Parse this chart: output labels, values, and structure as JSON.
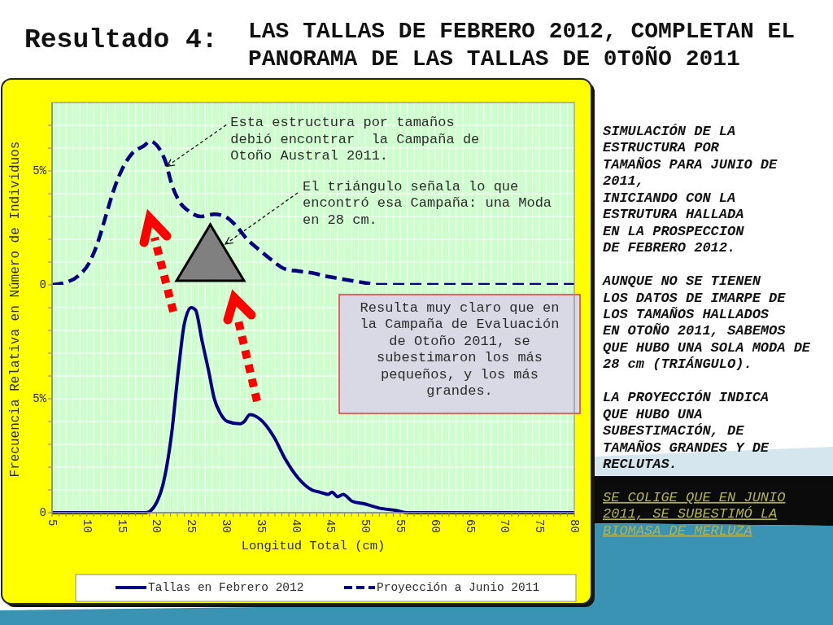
{
  "chart_data": [
    {
      "type": "line",
      "title": "Resultado 4:",
      "subtitle": "LAS TALLAS DE FEBRERO 2012, COMPLETAN EL PANORAMA DE LAS TALLAS DE 0T0ÑO 2011",
      "series": [
        {
          "name": "Proyección a Junio 2011",
          "color": "#000080",
          "x": [
            5,
            6.9,
            8.8,
            10.4,
            11.5,
            12.7,
            13.9,
            15.1,
            16.6,
            18.2,
            19.1,
            20.1,
            21.3,
            22.2,
            23.2,
            24.8,
            26.3,
            28.3,
            29.8,
            31.4,
            33,
            34.5,
            36.5,
            38.4,
            40.4,
            42.7,
            44,
            45.8,
            49.7,
            52,
            80
          ],
          "values": [
            0,
            0.1,
            0.4,
            1,
            1.8,
            3,
            4.2,
            5.1,
            5.8,
            6.1,
            6.3,
            6.1,
            5.4,
            4.4,
            3.7,
            3.2,
            3,
            3.1,
            3,
            2.6,
            2,
            1.6,
            1.1,
            0.7,
            0.6,
            0.5,
            0.4,
            0.3,
            0.1,
            0,
            0
          ]
        }
      ],
      "xlim": [
        5,
        80
      ],
      "xticks": [
        5,
        {
          "value": 6,
          "label": null
        },
        {
          "value": 7,
          "label": null
        },
        {
          "value": 8,
          "label": null
        },
        {
          "value": 9,
          "label": null
        },
        10,
        {
          "value": 11,
          "label": null
        },
        {
          "value": 12,
          "label": null
        },
        {
          "value": 13,
          "label": null
        },
        {
          "value": 14,
          "label": null
        },
        15,
        {
          "value": 16,
          "label": null
        },
        {
          "value": 17,
          "label": null
        },
        {
          "value": 18,
          "label": null
        },
        {
          "value": 19,
          "label": null
        },
        20,
        {
          "value": 21,
          "label": null
        },
        {
          "value": 22,
          "label": null
        },
        {
          "value": 23,
          "label": null
        },
        {
          "value": 24,
          "label": null
        },
        25,
        {
          "value": 26,
          "label": null
        },
        {
          "value": 27,
          "label": null
        },
        {
          "value": 28,
          "label": null
        },
        {
          "value": 29,
          "label": null
        },
        30,
        {
          "value": 31,
          "label": null
        },
        {
          "value": 32,
          "label": null
        },
        {
          "value": 33,
          "label": null
        },
        {
          "value": 34,
          "label": null
        },
        35,
        {
          "value": 36,
          "label": null
        },
        {
          "value": 37,
          "label": null
        },
        {
          "value": 38,
          "label": null
        },
        {
          "value": 39,
          "label": null
        },
        40,
        {
          "value": 41,
          "label": null
        },
        {
          "value": 42,
          "label": null
        },
        {
          "value": 43,
          "label": null
        },
        {
          "value": 44,
          "label": null
        },
        45,
        {
          "value": 46,
          "label": null
        },
        {
          "value": 47,
          "label": null
        },
        {
          "value": 48,
          "label": null
        },
        {
          "value": 49,
          "label": null
        },
        50,
        {
          "value": 51,
          "label": null
        },
        {
          "value": 52,
          "label": null
        },
        {
          "value": 53,
          "label": null
        },
        {
          "value": 54,
          "label": null
        },
        55,
        {
          "value": 56,
          "label": null
        },
        {
          "value": 57,
          "label": null
        },
        {
          "value": 58,
          "label": null
        },
        {
          "value": 59,
          "label": null
        },
        60,
        {
          "value": 61,
          "label": null
        },
        {
          "value": 62,
          "label": null
        },
        {
          "value": 63,
          "label": null
        },
        {
          "value": 64,
          "label": null
        },
        65,
        {
          "value": 66,
          "label": null
        },
        {
          "value": 67,
          "label": null
        },
        {
          "value": 68,
          "label": null
        },
        {
          "value": 69,
          "label": null
        },
        70,
        {
          "value": 71,
          "label": null
        },
        {
          "value": 72,
          "label": null
        },
        {
          "value": 73,
          "label": null
        },
        {
          "value": 74,
          "label": null
        },
        75,
        {
          "value": 76,
          "label": null
        },
        {
          "value": 77,
          "label": null
        },
        {
          "value": 78,
          "label": null
        },
        {
          "value": 79,
          "label": null
        },
        80
      ],
      "ylim": [
        0,
        8
      ],
      "yticks": [
        0,
        {
          "value": 1,
          "label": null
        },
        {
          "value": 2,
          "label": null
        },
        {
          "value": 3,
          "label": null
        },
        {
          "value": 4,
          "label": null
        },
        {
          "value": 5,
          "label": "5%"
        },
        {
          "value": 6,
          "label": null
        },
        {
          "value": 7,
          "label": null
        }
      ],
      "tick_labels": "y",
      "grid": true,
      "line_style": "dashed",
      "legend": "bottom",
      "annotations": [
        {
          "text": "Esta estructura por tamaños\ndebió encontrar  la Campaña de\nOtoño Austral 2011.",
          "x": 21.5,
          "y": 5.2
        },
        "El triángulo señala lo que\nencontró esa Campaña: una Moda\nen 28 cm.",
        "SIMULACIÓN DE LA\nESTRUCTURA POR\nTAMAÑOS PARA JUNIO DE\n2011,\nINICIANDO CON LA\nESTRUTURA HALLADA\nEN LA PROSPECCION\nDE FEBRERO 2012.",
        "AUNQUE NO SE TIENEN\nLOS DATOS DE IMARPE DE\nLOS TAMAÑOS HALLADOS\nEN OTOÑO 2011, SABEMOS\nQUE HUBO UNA SOLA MODA DE\n28 cm (TRIÁNGULO).",
        "LA PROYECCIÓN INDICA\nQUE HUBO UNA\nSUBESTIMACIÓN, DE\nTAMAÑOS GRANDES Y DE\nRECLUTAS.",
        "SE COLIGE QUE EN JUNIO\n2011, SE SUBESTIMÓ LA\nBIOMASA DE MERLUZA"
      ]
    },
    {
      "type": "line",
      "xlabel": "Longitud Total (cm)",
      "ylabel": "Frecuencia Relativa en Número de Individuos",
      "series": [
        {
          "name": "Tallas en Febrero 2012",
          "color": "#000080",
          "x": [
            5,
            18.5,
            19.2,
            20.1,
            20.9,
            22.1,
            23.2,
            24,
            25,
            25.6,
            26.5,
            27.5,
            28.3,
            29.1,
            30.2,
            32,
            32.6,
            33.4,
            34.9,
            36.9,
            38.4,
            40.4,
            42.3,
            43.5,
            44.6,
            45.2,
            46,
            46.8,
            48.1,
            49.7,
            52,
            54.4,
            56,
            80
          ],
          "values": [
            0,
            0,
            0.1,
            0.5,
            1.2,
            3.3,
            6.4,
            8.3,
            9,
            8.9,
            7.6,
            6.2,
            5,
            4.4,
            4,
            3.9,
            4,
            4.3,
            4.1,
            3.3,
            2.4,
            1.5,
            1,
            0.9,
            0.8,
            0.9,
            0.7,
            0.8,
            0.5,
            0.4,
            0.2,
            0.1,
            0,
            0
          ]
        }
      ],
      "xlim": [
        5,
        80
      ],
      "xticks": [
        5,
        {
          "value": 6,
          "label": null
        },
        {
          "value": 7,
          "label": null
        },
        {
          "value": 8,
          "label": null
        },
        {
          "value": 9,
          "label": null
        },
        10,
        {
          "value": 11,
          "label": null
        },
        {
          "value": 12,
          "label": null
        },
        {
          "value": 13,
          "label": null
        },
        {
          "value": 14,
          "label": null
        },
        15,
        {
          "value": 16,
          "label": null
        },
        {
          "value": 17,
          "label": null
        },
        {
          "value": 18,
          "label": null
        },
        {
          "value": 19,
          "label": null
        },
        20,
        {
          "value": 21,
          "label": null
        },
        {
          "value": 22,
          "label": null
        },
        {
          "value": 23,
          "label": null
        },
        {
          "value": 24,
          "label": null
        },
        25,
        {
          "value": 26,
          "label": null
        },
        {
          "value": 27,
          "label": null
        },
        {
          "value": 28,
          "label": null
        },
        {
          "value": 29,
          "label": null
        },
        30,
        {
          "value": 31,
          "label": null
        },
        {
          "value": 32,
          "label": null
        },
        {
          "value": 33,
          "label": null
        },
        {
          "value": 34,
          "label": null
        },
        35,
        {
          "value": 36,
          "label": null
        },
        {
          "value": 37,
          "label": null
        },
        {
          "value": 38,
          "label": null
        },
        {
          "value": 39,
          "label": null
        },
        40,
        {
          "value": 41,
          "label": null
        },
        {
          "value": 42,
          "label": null
        },
        {
          "value": 43,
          "label": null
        },
        {
          "value": 44,
          "label": null
        },
        45,
        {
          "value": 46,
          "label": null
        },
        {
          "value": 47,
          "label": null
        },
        {
          "value": 48,
          "label": null
        },
        {
          "value": 49,
          "label": null
        },
        50,
        {
          "value": 51,
          "label": null
        },
        {
          "value": 52,
          "label": null
        },
        {
          "value": 53,
          "label": null
        },
        {
          "value": 54,
          "label": null
        },
        55,
        {
          "value": 56,
          "label": null
        },
        {
          "value": 57,
          "label": null
        },
        {
          "value": 58,
          "label": null
        },
        {
          "value": 59,
          "label": null
        },
        60,
        {
          "value": 61,
          "label": null
        },
        {
          "value": 62,
          "label": null
        },
        {
          "value": 63,
          "label": null
        },
        {
          "value": 64,
          "label": null
        },
        65,
        {
          "value": 66,
          "label": null
        },
        {
          "value": 67,
          "label": null
        },
        {
          "value": 68,
          "label": null
        },
        {
          "value": 69,
          "label": null
        },
        70,
        {
          "value": 71,
          "label": null
        },
        {
          "value": 72,
          "label": null
        },
        {
          "value": 73,
          "label": null
        },
        {
          "value": 74,
          "label": null
        },
        75,
        {
          "value": 76,
          "label": null
        },
        {
          "value": 77,
          "label": null
        },
        {
          "value": 78,
          "label": null
        },
        {
          "value": 79,
          "label": null
        },
        80
      ],
      "ylim": [
        0,
        10
      ],
      "yticks": [
        0,
        {
          "value": 1,
          "label": null
        },
        {
          "value": 2,
          "label": null
        },
        {
          "value": 3,
          "label": null
        },
        {
          "value": 4,
          "label": null
        },
        {
          "value": 5,
          "label": "5%"
        },
        {
          "value": 6,
          "label": null
        },
        {
          "value": 7,
          "label": null
        },
        {
          "value": 8,
          "label": null
        },
        {
          "value": 9,
          "label": null
        }
      ],
      "grid": true,
      "line_style": "solid",
      "legend": "bottom",
      "annotations": [
        "Resulta muy claro que en\nla Campaña de Evaluación\nde Otoño 2011, se\nsubestimaron los más\npequeños, y los más\ngrandes."
      ]
    }
  ]
}
